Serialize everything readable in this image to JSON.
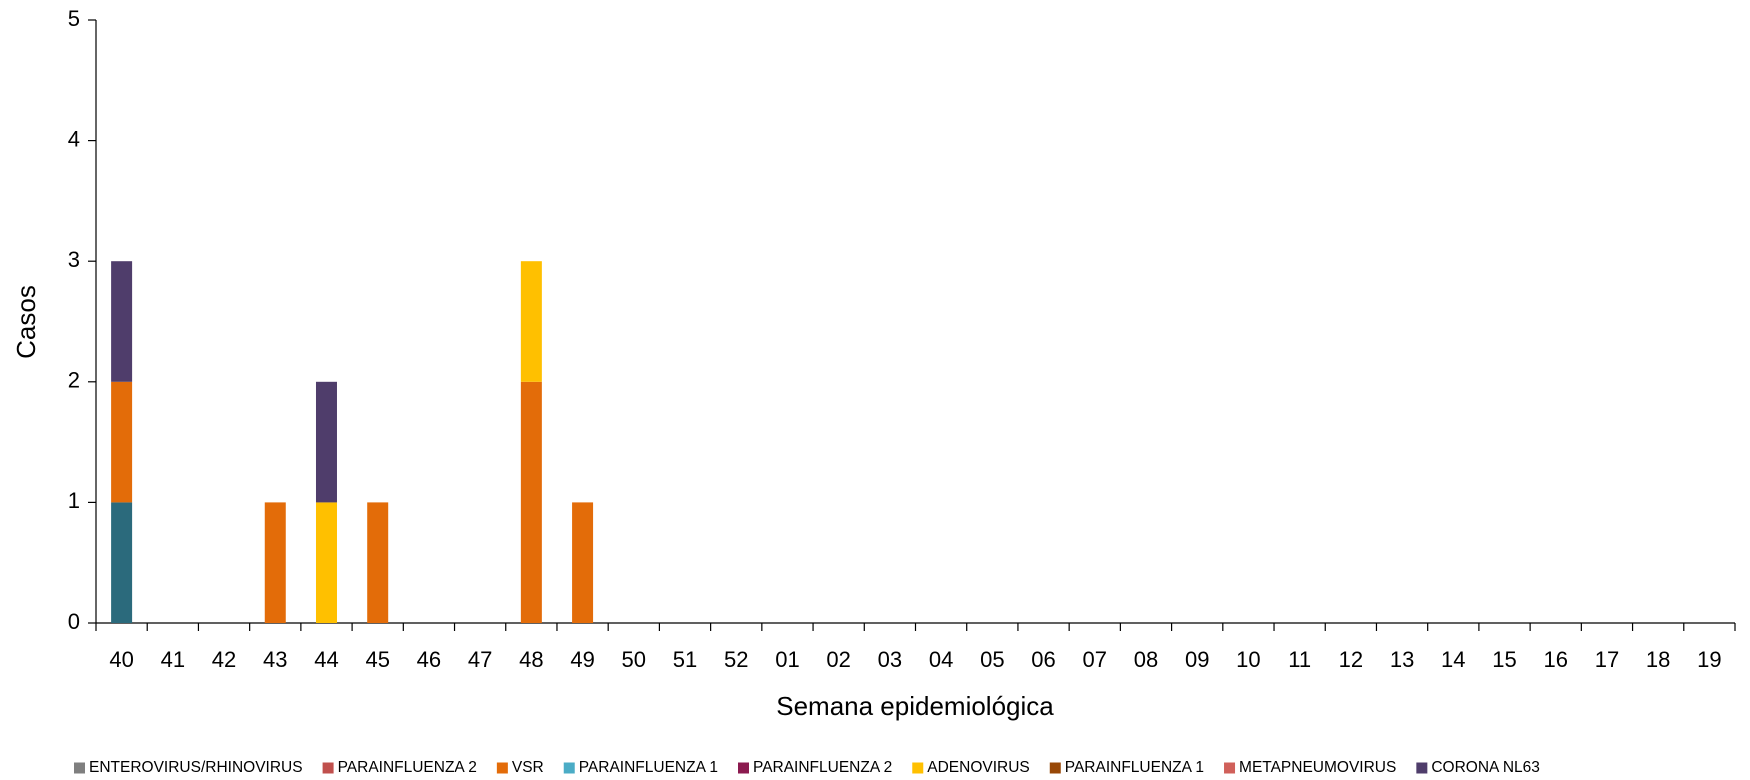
{
  "chart_data": {
    "type": "bar",
    "stacked": true,
    "x_label": "Semana epidemiológica",
    "y_label": "Casos",
    "categories": [
      "40",
      "41",
      "42",
      "43",
      "44",
      "45",
      "46",
      "47",
      "48",
      "49",
      "50",
      "51",
      "52",
      "01",
      "02",
      "03",
      "04",
      "05",
      "06",
      "07",
      "08",
      "09",
      "10",
      "11",
      "12",
      "13",
      "14",
      "15",
      "16",
      "17",
      "18",
      "19"
    ],
    "ylim": [
      0,
      5
    ],
    "yticks": [
      0,
      1,
      2,
      3,
      4,
      5
    ],
    "grid": false,
    "series": [
      {
        "color": "#2b6a7c",
        "values": [
          1,
          0,
          0,
          0,
          0,
          0,
          0,
          0,
          0,
          0,
          0,
          0,
          0,
          0,
          0,
          0,
          0,
          0,
          0,
          0,
          0,
          0,
          0,
          0,
          0,
          0,
          0,
          0,
          0,
          0,
          0,
          0
        ]
      },
      {
        "name": "ENTEROVIRUS/RHINOVIRUS",
        "color": "#7f7f7f",
        "values": [
          0,
          0,
          0,
          0,
          0,
          0,
          0,
          0,
          0,
          0,
          0,
          0,
          0,
          0,
          0,
          0,
          0,
          0,
          0,
          0,
          0,
          0,
          0,
          0,
          0,
          0,
          0,
          0,
          0,
          0,
          0,
          0
        ]
      },
      {
        "name": "PARAINFLUENZA 2",
        "color": "#c0504d",
        "values": [
          0,
          0,
          0,
          0,
          0,
          0,
          0,
          0,
          0,
          0,
          0,
          0,
          0,
          0,
          0,
          0,
          0,
          0,
          0,
          0,
          0,
          0,
          0,
          0,
          0,
          0,
          0,
          0,
          0,
          0,
          0,
          0
        ]
      },
      {
        "name": "VSR",
        "color": "#e36c09",
        "values": [
          1,
          0,
          0,
          1,
          0,
          1,
          0,
          0,
          2,
          1,
          0,
          0,
          0,
          0,
          0,
          0,
          0,
          0,
          0,
          0,
          0,
          0,
          0,
          0,
          0,
          0,
          0,
          0,
          0,
          0,
          0,
          0
        ]
      },
      {
        "name": "PARAINFLUENZA 1",
        "color": "#4bacc6",
        "values": [
          0,
          0,
          0,
          0,
          0,
          0,
          0,
          0,
          0,
          0,
          0,
          0,
          0,
          0,
          0,
          0,
          0,
          0,
          0,
          0,
          0,
          0,
          0,
          0,
          0,
          0,
          0,
          0,
          0,
          0,
          0,
          0
        ]
      },
      {
        "name": "PARAINFLUENZA 2",
        "color": "#8b1a4f",
        "values": [
          0,
          0,
          0,
          0,
          0,
          0,
          0,
          0,
          0,
          0,
          0,
          0,
          0,
          0,
          0,
          0,
          0,
          0,
          0,
          0,
          0,
          0,
          0,
          0,
          0,
          0,
          0,
          0,
          0,
          0,
          0,
          0
        ]
      },
      {
        "name": "ADENOVIRUS",
        "color": "#ffc000",
        "values": [
          0,
          0,
          0,
          0,
          1,
          0,
          0,
          0,
          1,
          0,
          0,
          0,
          0,
          0,
          0,
          0,
          0,
          0,
          0,
          0,
          0,
          0,
          0,
          0,
          0,
          0,
          0,
          0,
          0,
          0,
          0,
          0
        ]
      },
      {
        "name": "PARAINFLUENZA 1",
        "color": "#984807",
        "values": [
          0,
          0,
          0,
          0,
          0,
          0,
          0,
          0,
          0,
          0,
          0,
          0,
          0,
          0,
          0,
          0,
          0,
          0,
          0,
          0,
          0,
          0,
          0,
          0,
          0,
          0,
          0,
          0,
          0,
          0,
          0,
          0
        ]
      },
      {
        "name": "METAPNEUMOVIRUS",
        "color": "#d0605a",
        "values": [
          0,
          0,
          0,
          0,
          0,
          0,
          0,
          0,
          0,
          0,
          0,
          0,
          0,
          0,
          0,
          0,
          0,
          0,
          0,
          0,
          0,
          0,
          0,
          0,
          0,
          0,
          0,
          0,
          0,
          0,
          0,
          0
        ]
      },
      {
        "name": "CORONA NL63",
        "color": "#4f3d6b",
        "values": [
          1,
          0,
          0,
          0,
          1,
          0,
          0,
          0,
          0,
          0,
          0,
          0,
          0,
          0,
          0,
          0,
          0,
          0,
          0,
          0,
          0,
          0,
          0,
          0,
          0,
          0,
          0,
          0,
          0,
          0,
          0,
          0
        ]
      }
    ]
  }
}
